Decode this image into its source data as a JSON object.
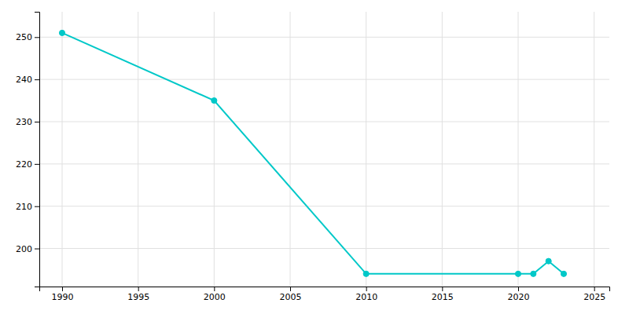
{
  "chart_data": {
    "type": "line",
    "x": [
      1990,
      2000,
      2010,
      2020,
      2021,
      2022,
      2023
    ],
    "values": [
      251,
      235,
      194,
      194,
      194,
      197,
      194
    ],
    "color": "#00C8C8",
    "marker": "circle",
    "xlim": [
      1988.5,
      2026
    ],
    "ylim": [
      191,
      256
    ],
    "xticks": [
      1990,
      1995,
      2000,
      2005,
      2010,
      2015,
      2020,
      2025
    ],
    "yticks": [
      200,
      210,
      220,
      230,
      240,
      250
    ],
    "grid": true
  }
}
